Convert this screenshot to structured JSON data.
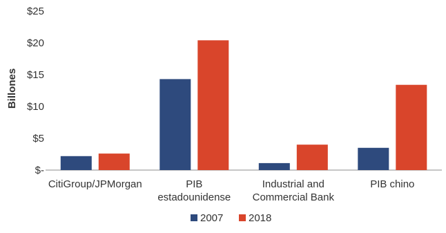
{
  "chart_data": {
    "type": "bar",
    "title": "",
    "xlabel": "",
    "ylabel": "Billones",
    "categories": [
      [
        "CitiGroup/JPMorgan"
      ],
      [
        "PIB",
        "estadounidense"
      ],
      [
        "Industrial and",
        "Commercial Bank"
      ],
      [
        "PIB chino"
      ]
    ],
    "series": [
      {
        "name": "2007",
        "color": "#2e4a7d",
        "values": [
          2.2,
          14.3,
          1.1,
          3.5
        ]
      },
      {
        "name": "2018",
        "color": "#d9452b",
        "values": [
          2.6,
          20.4,
          4.0,
          13.4
        ]
      }
    ],
    "ylim": [
      0,
      25
    ],
    "yticks": [
      0,
      5,
      10,
      15,
      20,
      25
    ],
    "ytick_labels": [
      "$-",
      "$5",
      "$10",
      "$15",
      "$20",
      "$25"
    ],
    "grid": false,
    "legend_position": "bottom-center"
  }
}
